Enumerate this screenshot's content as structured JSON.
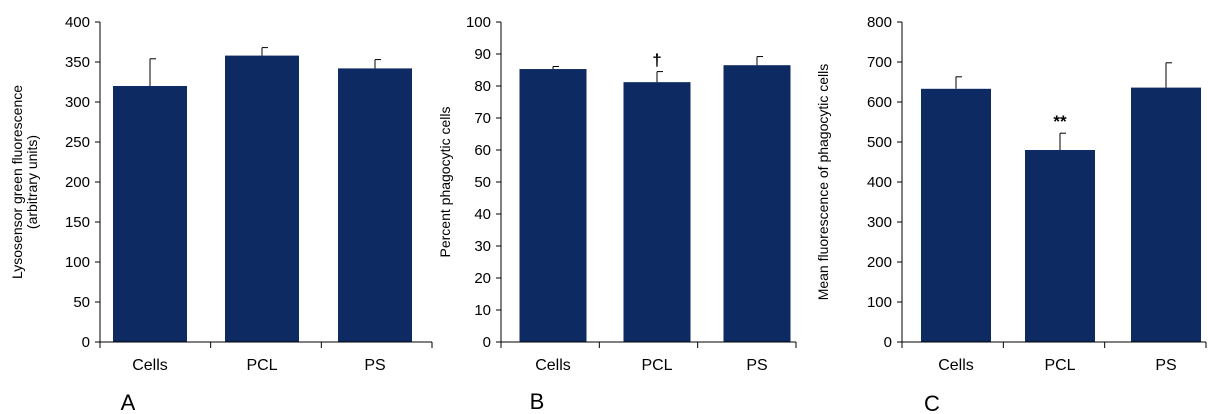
{
  "chart_data": [
    {
      "type": "bar",
      "panel_label": "A",
      "categories": [
        "Cells",
        "PCL",
        "PS"
      ],
      "values": [
        320,
        358,
        342
      ],
      "errors": [
        34,
        10,
        11
      ],
      "ylabel": "Lysosensor green fluorescence",
      "ylabel2": "(arbitrary units)",
      "ylim": [
        0,
        400
      ],
      "yticks": [
        0,
        50,
        100,
        150,
        200,
        250,
        300,
        350,
        400
      ],
      "annotations": [
        "",
        "",
        ""
      ],
      "bar_color": "#0d2a63",
      "grid": false
    },
    {
      "type": "bar",
      "panel_label": "B",
      "categories": [
        "Cells",
        "PCL",
        "PS"
      ],
      "values": [
        85.3,
        81.2,
        86.5
      ],
      "errors": [
        0.8,
        3.3,
        2.7
      ],
      "ylabel": "Percent phagocytic cells",
      "ylabel2": "",
      "ylim": [
        0,
        100
      ],
      "yticks": [
        0,
        10,
        20,
        30,
        40,
        50,
        60,
        70,
        80,
        90,
        100
      ],
      "annotations": [
        "",
        "†",
        ""
      ],
      "bar_color": "#0d2a63",
      "grid": false
    },
    {
      "type": "bar",
      "panel_label": "C",
      "categories": [
        "Cells",
        "PCL",
        "PS"
      ],
      "values": [
        633,
        480,
        636
      ],
      "errors": [
        30,
        42,
        62
      ],
      "ylabel": "Mean fluorescence  of phagocytic cells",
      "ylabel2": "",
      "ylim": [
        0,
        800
      ],
      "yticks": [
        0,
        100,
        200,
        300,
        400,
        500,
        600,
        700,
        800
      ],
      "annotations": [
        "",
        "**",
        ""
      ],
      "bar_color": "#0d2a63",
      "grid": false
    }
  ]
}
